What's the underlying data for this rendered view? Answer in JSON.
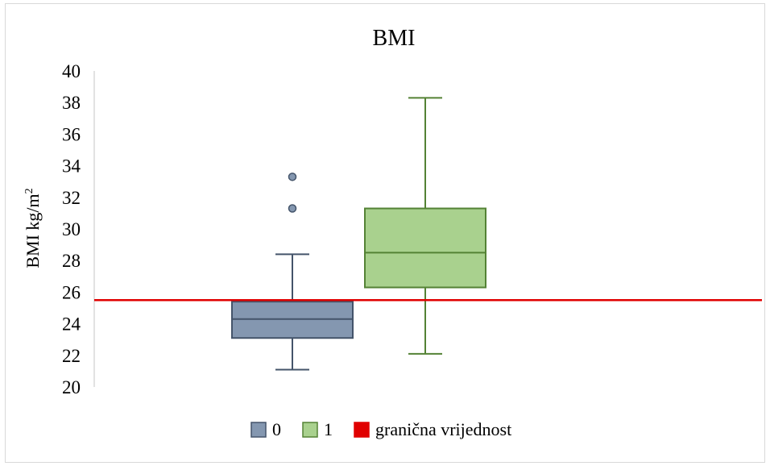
{
  "chart_data": {
    "type": "box",
    "title": "BMI",
    "ylabel": "BMI kg/m",
    "ylabel_sup": "2",
    "ylim": [
      20,
      40
    ],
    "yticks": [
      20,
      22,
      24,
      26,
      28,
      30,
      32,
      34,
      36,
      38,
      40
    ],
    "grid": false,
    "legend_position": "bottom",
    "series": [
      {
        "name": "0",
        "color": "#8497b0",
        "stroke": "#44546a",
        "whisker_low": 21.1,
        "q1": 23.1,
        "median": 24.3,
        "q3": 25.4,
        "whisker_high": 28.4,
        "outliers": [
          31.3,
          33.3
        ]
      },
      {
        "name": "1",
        "color": "#a9d18e",
        "stroke": "#548235",
        "whisker_low": 22.1,
        "q1": 26.3,
        "median": 28.5,
        "q3": 31.3,
        "whisker_high": 38.3,
        "outliers": []
      }
    ],
    "threshold": {
      "name": "granična vrijednost",
      "value": 25.5,
      "color": "#e00000"
    }
  }
}
